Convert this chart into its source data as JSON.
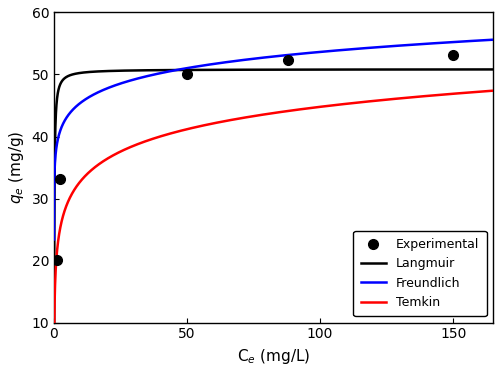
{
  "exp_x": [
    1.2,
    2.2,
    50.0,
    88.0,
    150.0
  ],
  "exp_y": [
    20.1,
    33.2,
    50.0,
    52.3,
    53.2
  ],
  "langmuir_qmax": 50.85,
  "langmuir_KL": 8.5,
  "freundlich_Kf": 38.5,
  "freundlich_1n": 0.072,
  "temkin_B": 5.2,
  "temkin_AT": 55.0,
  "xlim": [
    0,
    165
  ],
  "ylim": [
    10,
    60
  ],
  "xticks": [
    0,
    50,
    100,
    150
  ],
  "yticks": [
    10,
    20,
    30,
    40,
    50,
    60
  ],
  "xlabel": "C$_e$ (mg/L)",
  "ylabel": "$q_e$ (mg/g)",
  "legend_labels": [
    "Experimental",
    "Langmuir",
    "Freundlich",
    "Temkin"
  ],
  "exp_color": "black",
  "langmuir_color": "black",
  "freundlich_color": "blue",
  "temkin_color": "red",
  "line_width": 1.8,
  "marker_size": 7,
  "figsize": [
    5.0,
    3.73
  ],
  "dpi": 100
}
